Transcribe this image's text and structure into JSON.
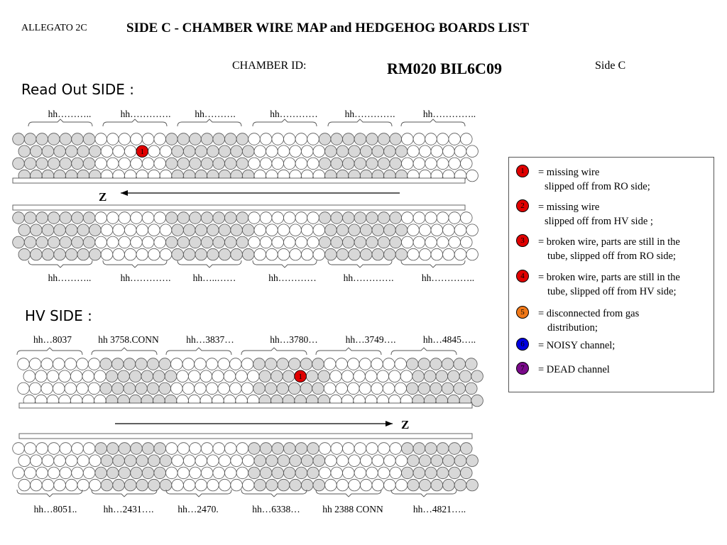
{
  "header": {
    "allegato": "ALLEGATO 2C",
    "title": "SIDE C - CHAMBER WIRE MAP and HEDGEHOG BOARDS LIST",
    "chamber_label": "CHAMBER ID:",
    "chamber_id": "RM020 BIL6C09",
    "side": "Side C"
  },
  "readout_side": {
    "heading": "Read Out SIDE :",
    "top_labels": [
      "hh………..",
      "hh………….",
      "hh……….",
      "hh…………",
      "hh………….",
      "hh………….."
    ],
    "bottom_labels": [
      "hh………..",
      "hh………….",
      "hh…..……",
      "hh…………",
      "hh………….",
      "hh………….."
    ],
    "z_label": "Z",
    "z_direction": "left",
    "marked_tubes": [
      {
        "multilayer": "upper",
        "layer": 2,
        "tube": 11,
        "code": "1"
      }
    ]
  },
  "hv_side": {
    "heading": "HV SIDE :",
    "top_labels": [
      "hh…8037",
      "hh 3758.CONN",
      "hh…3837…",
      "hh…3780…",
      "hh…3749….",
      "hh…4845….."
    ],
    "bottom_labels": [
      "hh…8051..",
      "hh…2431….",
      "hh…2470.",
      "hh…6338…",
      "hh 2388 CONN",
      "hh…4821….."
    ],
    "z_label": "Z",
    "z_direction": "right",
    "marked_tubes": [
      {
        "multilayer": "upper",
        "layer": 2,
        "tube": 24,
        "code": "1"
      }
    ]
  },
  "legend": {
    "items": [
      {
        "code": "1",
        "color": "#e00000",
        "lines": [
          "= missing wire",
          "slipped off from RO side;"
        ]
      },
      {
        "code": "2",
        "color": "#e00000",
        "lines": [
          "= missing wire",
          "slipped off from HV side ;"
        ]
      },
      {
        "code": "3",
        "color": "#e00000",
        "lines": [
          "= broken wire, parts are still in the",
          "tube, slipped off from RO side;"
        ]
      },
      {
        "code": "4",
        "color": "#e00000",
        "lines": [
          "= broken wire, parts are still in the",
          "tube,  slipped off from HV side;"
        ]
      },
      {
        "code": "5",
        "color": "#f07818",
        "lines": [
          "= disconnected from gas",
          "distribution;"
        ]
      },
      {
        "code": "6",
        "color": "#0000e0",
        "lines": [
          "= NOISY channel;"
        ]
      },
      {
        "code": "7",
        "color": "#7a0a8a",
        "lines": [
          "= DEAD channel"
        ]
      }
    ]
  },
  "colors": {
    "tube_shaded": "#d8d8d8",
    "tube_plain": "#ffffff",
    "marker_red": "#e00000"
  }
}
